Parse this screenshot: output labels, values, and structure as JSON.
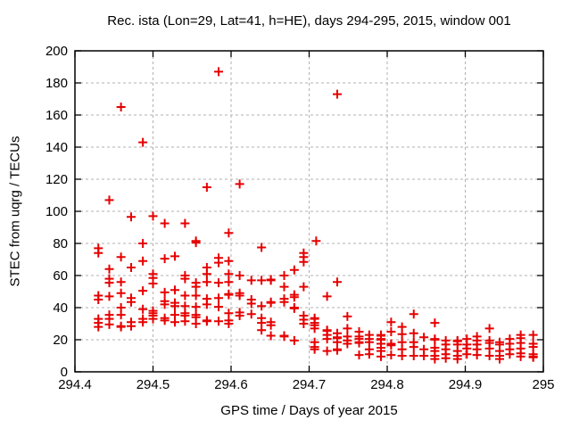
{
  "window": {
    "background": "#ffffff"
  },
  "chart_data": {
    "type": "scatter",
    "title": "Rec. ista (Lon=29, Lat=41, h=HE), days 294-295, 2015, window 001",
    "xlabel": "GPS time / Days of year 2015",
    "ylabel": "STEC from uqrg / TECUs",
    "xlim": [
      294.4,
      295
    ],
    "ylim": [
      0,
      200
    ],
    "xticks": [
      294.4,
      294.5,
      294.6,
      294.7,
      294.8,
      294.9,
      295
    ],
    "xtick_labels": [
      "294.4",
      "294.5",
      "294.6",
      "294.7",
      "294.8",
      "294.9",
      "295"
    ],
    "yticks": [
      0,
      20,
      40,
      60,
      80,
      100,
      120,
      140,
      160,
      180,
      200
    ],
    "ytick_labels": [
      "0",
      "20",
      "40",
      "60",
      "80",
      "100",
      "120",
      "140",
      "160",
      "180",
      "200"
    ],
    "grid": true,
    "grid_style": "dashed",
    "legend": "none",
    "colors": {
      "marker": "#e60000",
      "grid": "#b0b0b0",
      "axis": "#000000",
      "text": "#000000"
    },
    "series": [
      {
        "name": "STEC",
        "marker": "plus",
        "columns": [
          {
            "x": 294.43,
            "y": [
              77,
              74,
              47.5,
              45,
              33,
              30.5,
              28
            ]
          },
          {
            "x": 294.444,
            "y": [
              107,
              64,
              58,
              55.5,
              47,
              35.5,
              33,
              29.5
            ]
          },
          {
            "x": 294.459,
            "y": [
              165,
              71.5,
              56,
              49,
              40,
              35.5,
              28.5,
              28
            ]
          },
          {
            "x": 294.472,
            "y": [
              96.5,
              65,
              46,
              43.5,
              31,
              28.5
            ]
          },
          {
            "x": 294.487,
            "y": [
              143,
              80,
              69,
              50.5,
              39,
              33,
              31
            ]
          },
          {
            "x": 294.5,
            "y": [
              97,
              61,
              58.5,
              55,
              38,
              36.5,
              35,
              33
            ]
          },
          {
            "x": 294.515,
            "y": [
              92.5,
              70.5,
              49.5,
              44,
              42,
              33.5,
              32
            ]
          },
          {
            "x": 294.528,
            "y": [
              72,
              51,
              43,
              41,
              35.5,
              31
            ]
          },
          {
            "x": 294.541,
            "y": [
              92.5,
              60,
              58,
              47.5,
              41,
              36.5,
              35,
              31.5
            ]
          },
          {
            "x": 294.555,
            "y": [
              81.5,
              80.5,
              55.5,
              53,
              47.5,
              40.5,
              35.5,
              34,
              30
            ]
          },
          {
            "x": 294.569,
            "y": [
              115,
              65,
              61,
              56,
              45.5,
              42,
              32,
              31.5
            ]
          },
          {
            "x": 294.584,
            "y": [
              187,
              71,
              68,
              55.5,
              46,
              40.5,
              31.5
            ]
          },
          {
            "x": 294.597,
            "y": [
              86.5,
              69,
              61,
              56,
              48.5,
              48,
              36.5,
              32,
              30
            ]
          },
          {
            "x": 294.611,
            "y": [
              117,
              60,
              49,
              47.5,
              37,
              35
            ]
          },
          {
            "x": 294.626,
            "y": [
              57,
              45,
              42.5,
              36
            ]
          },
          {
            "x": 294.639,
            "y": [
              77.5,
              57,
              41,
              33.5,
              30.5,
              26
            ]
          },
          {
            "x": 294.651,
            "y": [
              57.5,
              57,
              43.5,
              43,
              31,
              29,
              22.5
            ]
          },
          {
            "x": 294.668,
            "y": [
              60,
              53,
              45.5,
              43.5,
              22.5,
              22
            ]
          },
          {
            "x": 294.681,
            "y": [
              63.5,
              48,
              46.5,
              40,
              39.5,
              19.5
            ]
          },
          {
            "x": 294.693,
            "y": [
              74,
              71.5,
              68.5,
              53,
              35,
              32.5,
              30
            ]
          },
          {
            "x": 294.707,
            "y": [
              33.5,
              33,
              30.5,
              29,
              27,
              18.5,
              15.5,
              14
            ]
          },
          {
            "x": 294.709,
            "y": [
              81.5
            ]
          },
          {
            "x": 294.723,
            "y": [
              47,
              26,
              25.5,
              23,
              20.5,
              13
            ]
          },
          {
            "x": 294.736,
            "y": [
              173,
              56,
              24,
              21.5,
              21,
              18.5,
              14,
              13.5
            ]
          },
          {
            "x": 294.749,
            "y": [
              34.5,
              27,
              22,
              19.5,
              17.5
            ]
          },
          {
            "x": 294.764,
            "y": [
              25,
              22,
              20.5,
              18.5,
              18,
              10.5
            ]
          },
          {
            "x": 294.777,
            "y": [
              23,
              20.5,
              18.5,
              14,
              11
            ]
          },
          {
            "x": 294.792,
            "y": [
              23,
              22.5,
              20.5,
              20,
              17.5,
              15,
              13,
              9.5
            ]
          },
          {
            "x": 294.805,
            "y": [
              31,
              25,
              17.5,
              16.5,
              10.5
            ]
          },
          {
            "x": 294.819,
            "y": [
              28,
              23.5,
              18.5,
              14,
              10
            ]
          },
          {
            "x": 294.834,
            "y": [
              36,
              24,
              18.5,
              15.5,
              10
            ]
          },
          {
            "x": 294.847,
            "y": [
              21.5,
              14,
              10
            ]
          },
          {
            "x": 294.861,
            "y": [
              30.5,
              20.5,
              20,
              15,
              13,
              10,
              8
            ]
          },
          {
            "x": 294.875,
            "y": [
              19.5,
              17,
              14,
              11,
              8.5
            ]
          },
          {
            "x": 294.89,
            "y": [
              19.5,
              19,
              17,
              13,
              10,
              8
            ]
          },
          {
            "x": 294.902,
            "y": [
              20.5,
              17,
              14.5,
              11
            ]
          },
          {
            "x": 294.915,
            "y": [
              22,
              19.5,
              17,
              14,
              10.5
            ]
          },
          {
            "x": 294.931,
            "y": [
              27,
              19.5,
              18,
              14.5,
              10
            ]
          },
          {
            "x": 294.944,
            "y": [
              18.5,
              17,
              13,
              10,
              8
            ]
          },
          {
            "x": 294.957,
            "y": [
              20.5,
              17.5,
              14,
              11
            ]
          },
          {
            "x": 294.971,
            "y": [
              23,
              21,
              18,
              14.5,
              11.5,
              9.5
            ]
          },
          {
            "x": 294.987,
            "y": [
              23,
              17.5,
              15.5,
              11,
              9.5,
              9
            ]
          }
        ]
      }
    ]
  }
}
